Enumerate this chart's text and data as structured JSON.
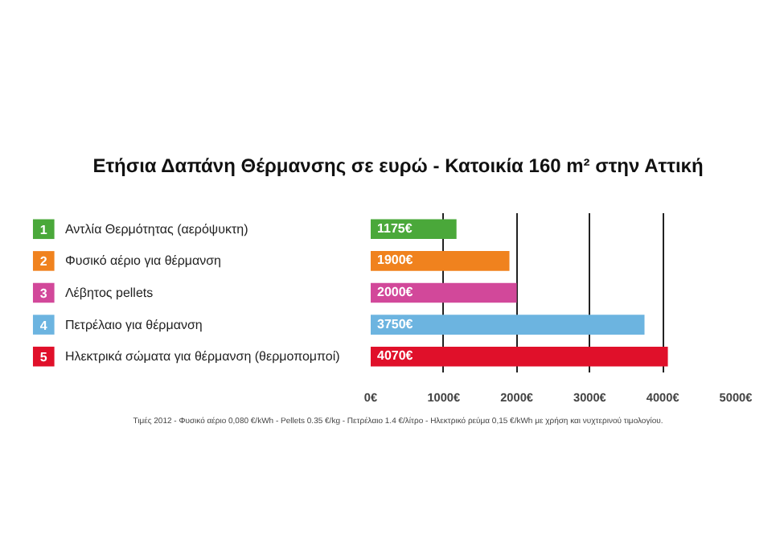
{
  "chart_data": {
    "type": "bar",
    "orientation": "horizontal",
    "title": "Ετήσια Δαπάνη Θέρμανσης σε ευρώ - Κατοικία 160 m² στην Αττική",
    "categories": [
      "1 Αντλία Θερμότητας (αερόψυκτη)",
      "2 Φυσικό αέριο για θέρμανση",
      "3 Λέβητος pellets",
      "4 Πετρέλαιο για θέρμανση",
      "5 Ηλεκτρικά σώματα για θέρμανση (θερμοπομποί)"
    ],
    "values": [
      1175,
      1900,
      2000,
      3750,
      4070
    ],
    "colors": [
      "#4aa83a",
      "#f0821e",
      "#d2489a",
      "#6cb4e0",
      "#e0102a"
    ],
    "value_labels": [
      "1175€",
      "1900€",
      "2000€",
      "3750€",
      "4070€"
    ],
    "xlim": [
      0,
      5000
    ],
    "xticks": [
      {
        "value": 0,
        "label": "0€"
      },
      {
        "value": 1000,
        "label": "1000€"
      },
      {
        "value": 2000,
        "label": "2000€"
      },
      {
        "value": 3000,
        "label": "3000€"
      },
      {
        "value": 4000,
        "label": "4000€"
      },
      {
        "value": 5000,
        "label": "5000€"
      }
    ],
    "grid": "x",
    "legend": false,
    "annotations": [
      "Τιμές 2012 - Φυσικό αέριο 0,080 €/kWh - Pellets 0.35 €/kg - Πετρέλαιο 1.4 €/λίτρο - Ηλεκτρικό ρεύμα 0,15 €/kWh με χρήση και νυχτερινού τιμολογίου."
    ]
  }
}
